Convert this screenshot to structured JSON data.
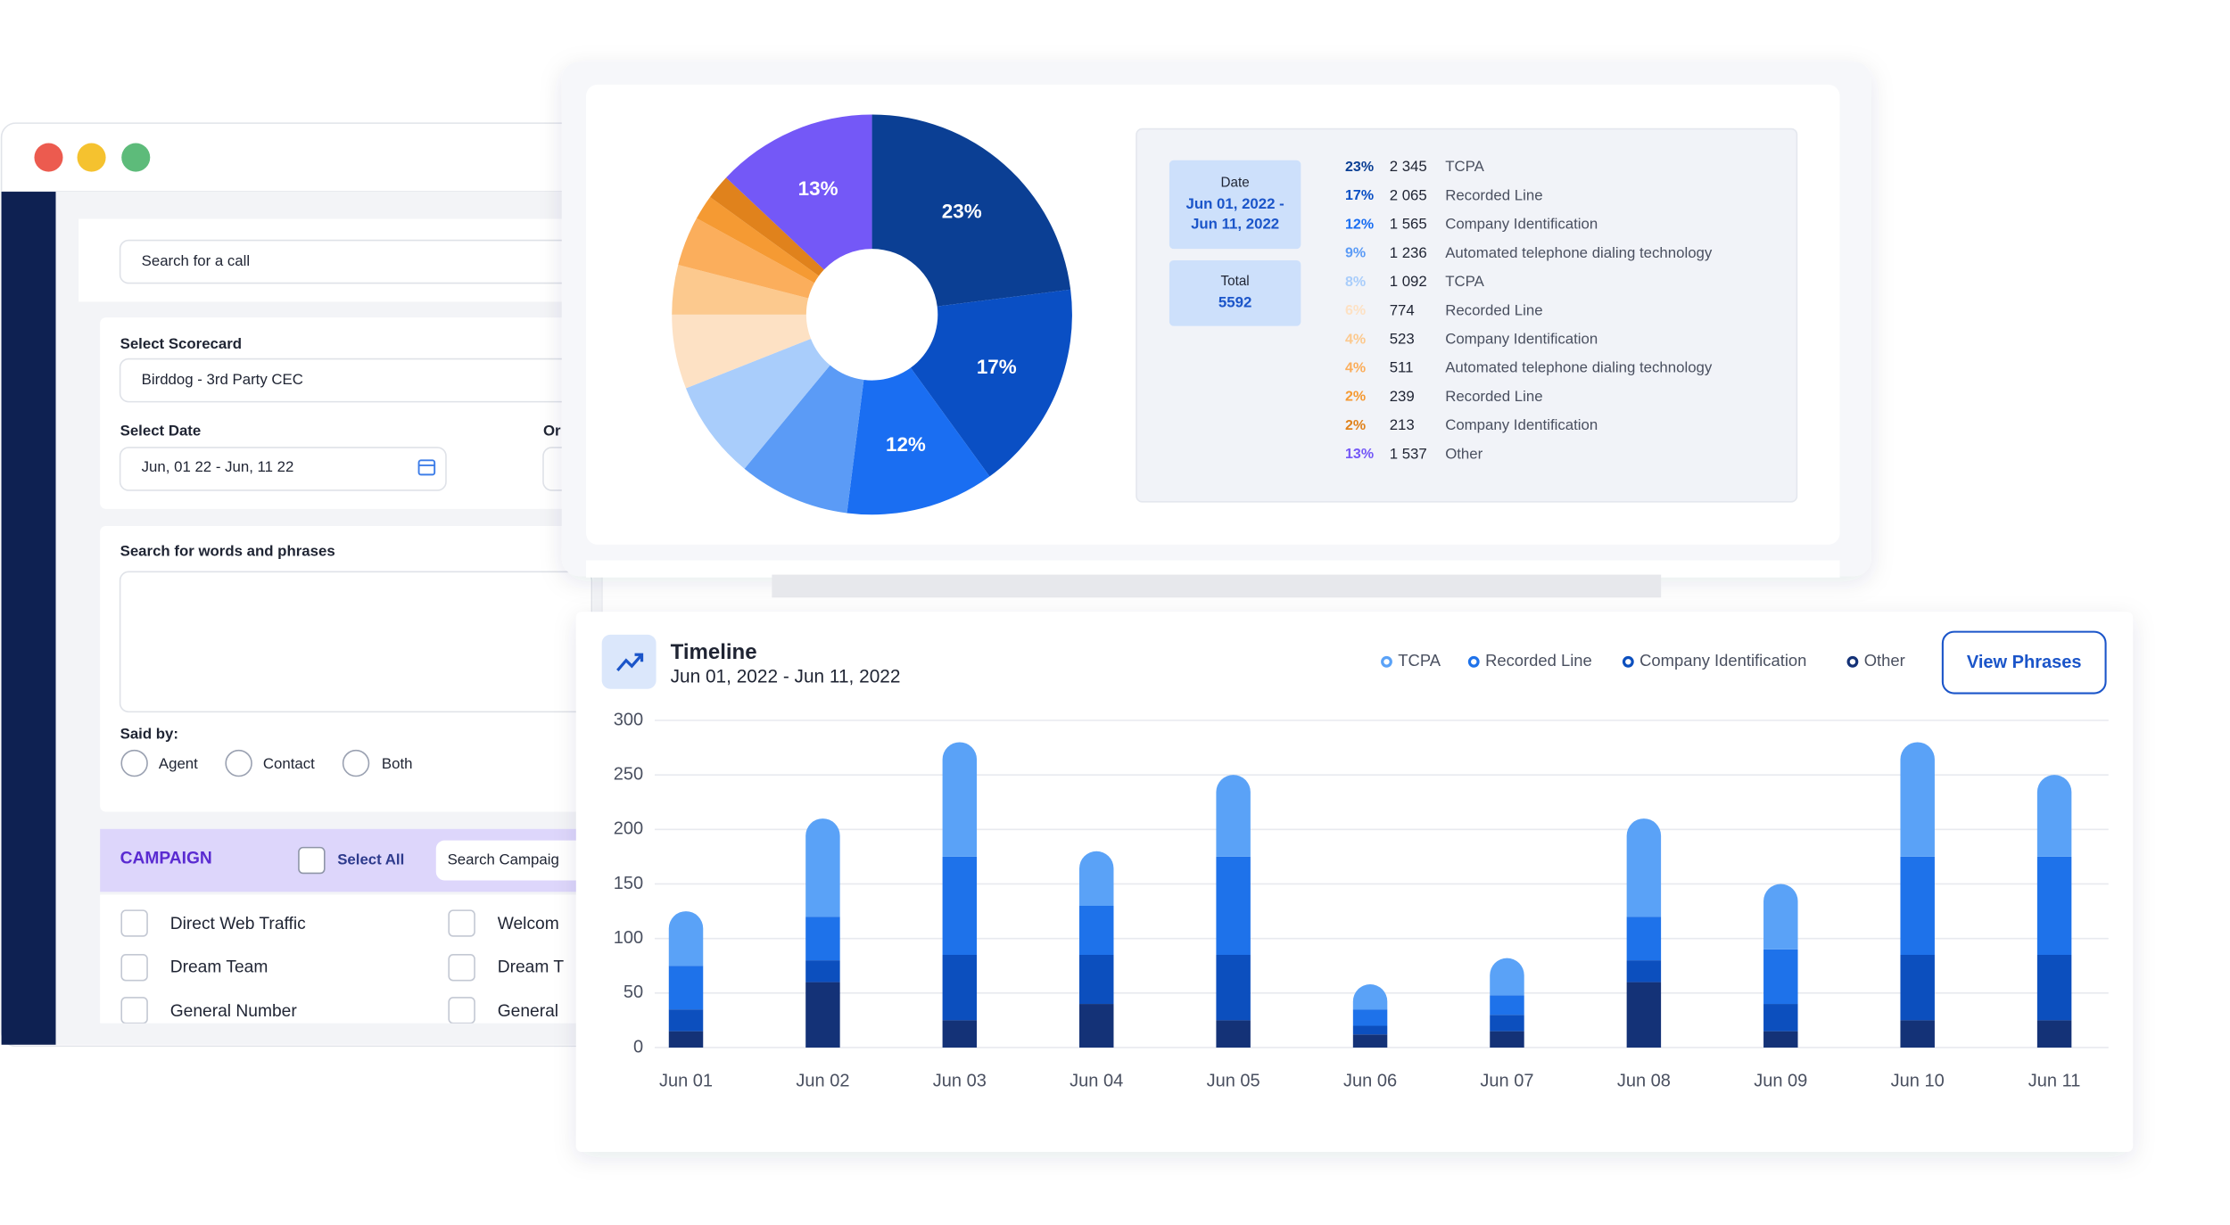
{
  "window": {
    "search_placeholder": "Search for a call",
    "scorecard_label": "Select Scorecard",
    "scorecard_value": "Birddog - 3rd Party CEC",
    "date_label": "Select Date",
    "or_label": "Or",
    "date_value": "Jun, 01 22 - Jun, 11 22",
    "phrases_label": "Search for words and phrases",
    "said_by_label": "Said by:",
    "said_by_options": [
      "Agent",
      "Contact",
      "Both"
    ],
    "campaign_title": "CAMPAIGN",
    "select_all": "Select All",
    "campaign_search": "Search Campaig",
    "campaigns": [
      "Direct Web Traffic",
      "Welcom",
      "Dream Team",
      "Dream T",
      "General Number",
      "General"
    ]
  },
  "summary": {
    "date_label": "Date",
    "date_range": [
      "Jun 01, 2022 -",
      "Jun 11, 2022"
    ],
    "total_label": "Total",
    "total": 5592
  },
  "timeline_button": "View Phrases",
  "chart_data": [
    {
      "type": "pie",
      "categories": [
        "TCPA",
        "Recorded Line",
        "Company Identification",
        "Automated telephone dialing technology",
        "TCPA",
        "Recorded Line",
        "Company Identification",
        "Automated telephone dialing technology",
        "Recorded Line",
        "Company Identification",
        "Other"
      ],
      "values": [
        23,
        17,
        12,
        9,
        8,
        6,
        4,
        4,
        2,
        2,
        13
      ],
      "value_labels": [
        "23%",
        "17%",
        "12%",
        "9%",
        "8%",
        "6%",
        "4%",
        "4%",
        "2%",
        "2%",
        "13%"
      ],
      "counts": [
        {
          "value": 2345,
          "label": "2 345"
        },
        {
          "value": 2065,
          "label": "2 065"
        },
        {
          "value": 1565,
          "label": "1 565"
        },
        {
          "value": 1236,
          "label": "1 236"
        },
        {
          "value": 1092,
          "label": "1 092"
        },
        {
          "value": 774,
          "label": "774"
        },
        {
          "value": 523,
          "label": "523"
        },
        {
          "value": 511,
          "label": "511"
        },
        {
          "value": 239,
          "label": "239"
        },
        {
          "value": 213,
          "label": "213"
        },
        {
          "value": 1537,
          "label": "1 537"
        }
      ],
      "colors": [
        "#0b3f94",
        "#0a4fc4",
        "#1a6ef2",
        "#5b9bf6",
        "#a9cdfb",
        "#fde1c4",
        "#fcc98e",
        "#fbae5c",
        "#f59a33",
        "#e0821c",
        "#7458f7"
      ]
    },
    {
      "type": "bar",
      "title": "Timeline",
      "subtitle": "Jun 01, 2022 - Jun 11, 2022",
      "stacked": true,
      "categories": [
        "Jun 01",
        "Jun 02",
        "Jun 03",
        "Jun 04",
        "Jun 05",
        "Jun 06",
        "Jun 07",
        "Jun 08",
        "Jun 09",
        "Jun 10",
        "Jun 11"
      ],
      "series": [
        {
          "name": "TCPA",
          "color": "#5aa2f7",
          "values": [
            50,
            90,
            105,
            50,
            75,
            23,
            34,
            90,
            60,
            105,
            75
          ]
        },
        {
          "name": "Recorded Line",
          "color": "#1e72ea",
          "values": [
            40,
            40,
            90,
            45,
            90,
            15,
            18,
            40,
            50,
            90,
            90
          ]
        },
        {
          "name": "Company Identification",
          "color": "#0c4fbe",
          "values": [
            20,
            20,
            60,
            45,
            60,
            8,
            15,
            20,
            25,
            60,
            60
          ]
        },
        {
          "name": "Other",
          "color": "#143277",
          "values": [
            15,
            60,
            25,
            40,
            25,
            12,
            15,
            60,
            15,
            25,
            25
          ]
        }
      ],
      "ylim": [
        0,
        300
      ],
      "yticks": [
        0,
        50,
        100,
        150,
        200,
        250,
        300
      ],
      "grid": true,
      "legend": "top"
    }
  ]
}
